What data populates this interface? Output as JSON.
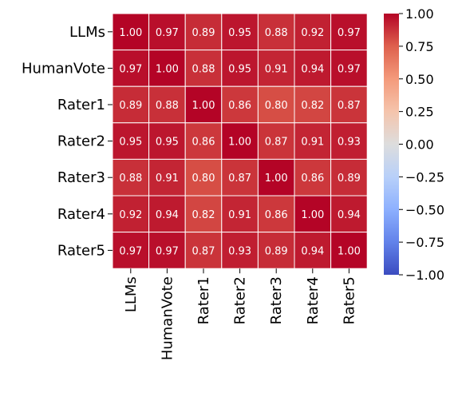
{
  "chart_data": {
    "type": "heatmap",
    "title": "",
    "xlabel": "",
    "ylabel": "",
    "row_labels": [
      "LLMs",
      "HumanVote",
      "Rater1",
      "Rater2",
      "Rater3",
      "Rater4",
      "Rater5"
    ],
    "col_labels": [
      "LLMs",
      "HumanVote",
      "Rater1",
      "Rater2",
      "Rater3",
      "Rater4",
      "Rater5"
    ],
    "values": [
      [
        1.0,
        0.97,
        0.89,
        0.95,
        0.88,
        0.92,
        0.97
      ],
      [
        0.97,
        1.0,
        0.88,
        0.95,
        0.91,
        0.94,
        0.97
      ],
      [
        0.89,
        0.88,
        1.0,
        0.86,
        0.8,
        0.82,
        0.87
      ],
      [
        0.95,
        0.95,
        0.86,
        1.0,
        0.87,
        0.91,
        0.93
      ],
      [
        0.88,
        0.91,
        0.8,
        0.87,
        1.0,
        0.86,
        0.89
      ],
      [
        0.92,
        0.94,
        0.82,
        0.91,
        0.86,
        1.0,
        0.94
      ],
      [
        0.97,
        0.97,
        0.87,
        0.93,
        0.89,
        0.94,
        1.0
      ]
    ],
    "cell_labels": [
      [
        "1.00",
        "0.97",
        "0.89",
        "0.95",
        "0.88",
        "0.92",
        "0.97"
      ],
      [
        "0.97",
        "1.00",
        "0.88",
        "0.95",
        "0.91",
        "0.94",
        "0.97"
      ],
      [
        "0.89",
        "0.88",
        "1.00",
        "0.86",
        "0.80",
        "0.82",
        "0.87"
      ],
      [
        "0.95",
        "0.95",
        "0.86",
        "1.00",
        "0.87",
        "0.91",
        "0.93"
      ],
      [
        "0.88",
        "0.91",
        "0.80",
        "0.87",
        "1.00",
        "0.86",
        "0.89"
      ],
      [
        "0.92",
        "0.94",
        "0.82",
        "0.91",
        "0.86",
        "1.00",
        "0.94"
      ],
      [
        "0.97",
        "0.97",
        "0.87",
        "0.93",
        "0.89",
        "0.94",
        "1.00"
      ]
    ],
    "colormap": "coolwarm",
    "vmin": -1.0,
    "vmax": 1.0,
    "colorbar_ticks": [
      1.0,
      0.75,
      0.5,
      0.25,
      0.0,
      -0.25,
      -0.5,
      -0.75,
      -1.0
    ],
    "colorbar_tick_labels": [
      "1.00",
      "0.75",
      "0.50",
      "0.25",
      "0.00",
      "−0.25",
      "−0.50",
      "−0.75",
      "−1.00"
    ],
    "colorbar_stops": [
      "#3b4cc0",
      "#6282ea",
      "#8db0fe",
      "#b8d0f9",
      "#dddddd",
      "#f5c4ac",
      "#f49a7b",
      "#de604d",
      "#b40426"
    ],
    "gridlines": "white"
  }
}
